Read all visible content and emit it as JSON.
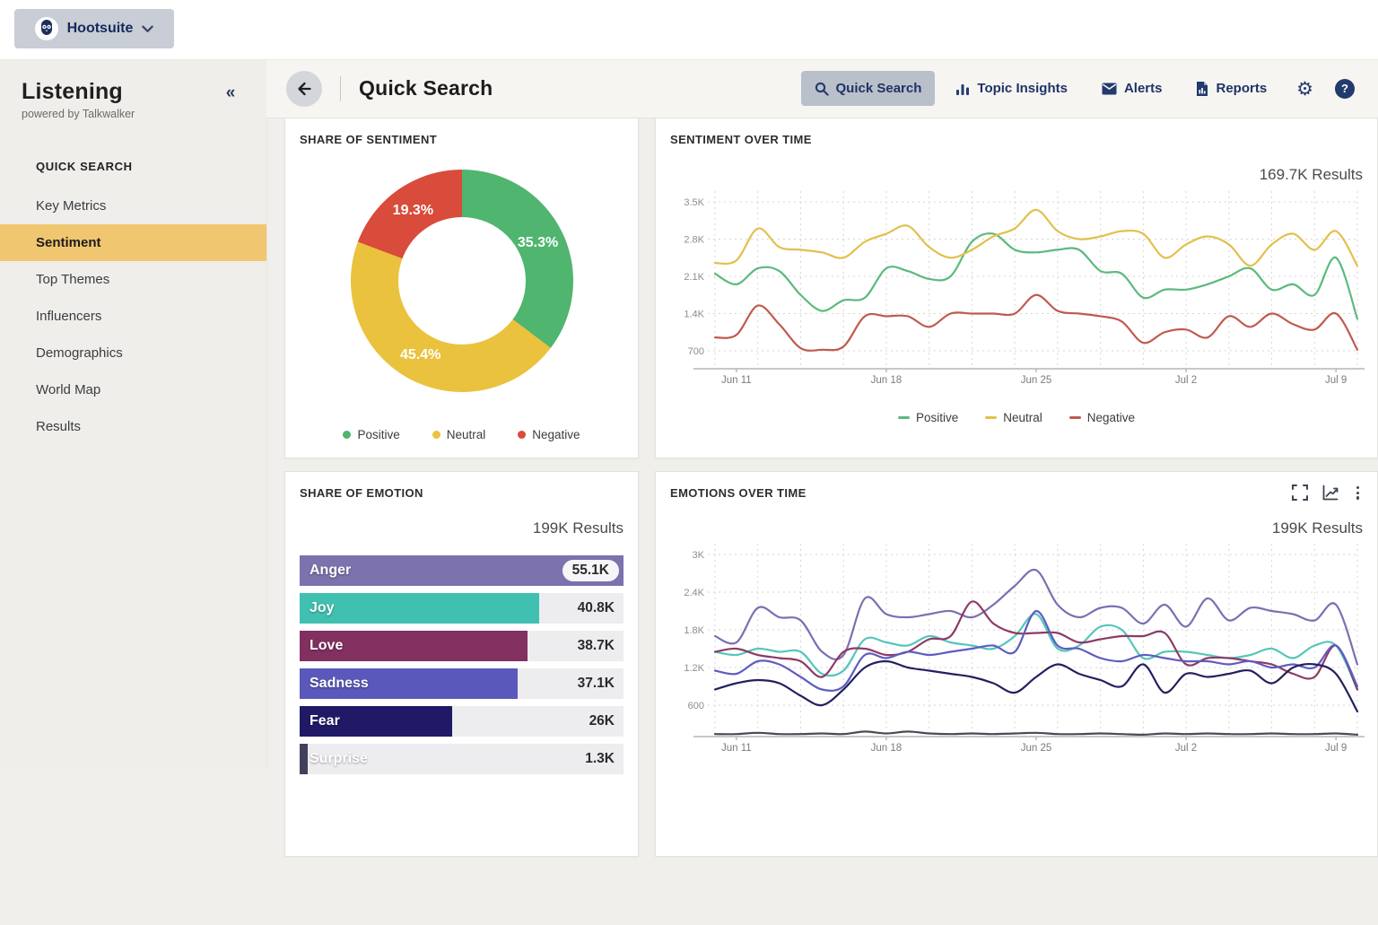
{
  "app": {
    "brand": "Hootsuite",
    "product_title": "Listening",
    "product_subtitle": "powered by Talkwalker",
    "collapse_glyph": "«"
  },
  "sidebar": {
    "section_label": "QUICK SEARCH",
    "active_color": "#f0c770",
    "items": [
      {
        "label": "Key Metrics",
        "active": false
      },
      {
        "label": "Sentiment",
        "active": true
      },
      {
        "label": "Top Themes",
        "active": false
      },
      {
        "label": "Influencers",
        "active": false
      },
      {
        "label": "Demographics",
        "active": false
      },
      {
        "label": "World Map",
        "active": false
      },
      {
        "label": "Results",
        "active": false
      }
    ]
  },
  "header": {
    "title": "Quick Search",
    "help_glyph": "?",
    "nav": [
      {
        "label": "Quick Search",
        "icon": "search-icon",
        "active": true
      },
      {
        "label": "Topic Insights",
        "icon": "bar-chart-icon",
        "active": false
      },
      {
        "label": "Alerts",
        "icon": "envelope-icon",
        "active": false
      },
      {
        "label": "Reports",
        "icon": "report-icon",
        "active": false
      }
    ]
  },
  "chart_data": [
    {
      "type": "pie",
      "title": "SHARE OF SENTIMENT",
      "donut": true,
      "labels": [
        "Positive",
        "Neutral",
        "Negative"
      ],
      "values": [
        35.3,
        45.4,
        19.3
      ],
      "value_labels": [
        "35.3%",
        "45.4%",
        "19.3%"
      ],
      "colors": [
        "#50b56f",
        "#eac23e",
        "#d94b3a"
      ],
      "legend_position": "bottom"
    },
    {
      "type": "line",
      "title": "SENTIMENT OVER TIME",
      "results": "169.7K Results",
      "grid": "dashed",
      "legend_position": "bottom",
      "x_ticks": [
        "Jun 11",
        "Jun 18",
        "Jun 25",
        "Jul 2",
        "Jul 9"
      ],
      "y_ticks": [
        "3.5K",
        "2.8K",
        "2.1K",
        "1.4K",
        "700"
      ],
      "y_tick_values": [
        3500,
        2800,
        2100,
        1400,
        700
      ],
      "series": [
        {
          "name": "Positive",
          "color": "#5cb97e",
          "values": [
            2150,
            1950,
            2250,
            2200,
            1750,
            1450,
            1650,
            1700,
            2250,
            2200,
            2050,
            2100,
            2750,
            2900,
            2600,
            2550,
            2600,
            2600,
            2200,
            2150,
            1700,
            1850,
            1850,
            1950,
            2100,
            2250,
            1850,
            1950,
            1750,
            2450,
            1300
          ]
        },
        {
          "name": "Neutral",
          "color": "#e2c04c",
          "values": [
            2350,
            2400,
            3000,
            2650,
            2600,
            2550,
            2450,
            2750,
            2900,
            3050,
            2650,
            2450,
            2600,
            2850,
            3000,
            3350,
            2950,
            2800,
            2850,
            2950,
            2900,
            2450,
            2700,
            2850,
            2700,
            2300,
            2700,
            2900,
            2600,
            2950,
            2300
          ]
        },
        {
          "name": "Negative",
          "color": "#c05a4e",
          "values": [
            950,
            1000,
            1550,
            1200,
            750,
            720,
            780,
            1350,
            1350,
            1350,
            1150,
            1400,
            1400,
            1400,
            1400,
            1750,
            1450,
            1400,
            1350,
            1250,
            850,
            1050,
            1100,
            950,
            1350,
            1150,
            1400,
            1200,
            1100,
            1400,
            720
          ]
        }
      ]
    },
    {
      "type": "bar",
      "title": "SHARE OF EMOTION",
      "results": "199K Results",
      "orientation": "horizontal",
      "categories": [
        "Anger",
        "Joy",
        "Love",
        "Sadness",
        "Fear",
        "Surprise"
      ],
      "values": [
        55100,
        40800,
        38700,
        37100,
        26000,
        1300
      ],
      "value_labels": [
        "55.1K",
        "40.8K",
        "38.7K",
        "37.1K",
        "26K",
        "1.3K"
      ],
      "colors": [
        "#7b72ae",
        "#40c0b1",
        "#81305f",
        "#5b58bb",
        "#201a66",
        "#41415c"
      ]
    },
    {
      "type": "line",
      "title": "EMOTIONS OVER TIME",
      "results": "199K Results",
      "grid": "dashed",
      "actions": [
        "fullscreen-icon",
        "line-chart-icon",
        "more-options-icon"
      ],
      "x_ticks": [
        "Jun 11",
        "Jun 18",
        "Jun 25",
        "Jul 2",
        "Jul 9"
      ],
      "y_ticks": [
        "3K",
        "2.4K",
        "1.8K",
        "1.2K",
        "600"
      ],
      "y_tick_values": [
        3000,
        2400,
        1800,
        1200,
        600
      ],
      "series": [
        {
          "name": "Anger",
          "color": "#7a70b1",
          "values": [
            1700,
            1600,
            2150,
            2000,
            1950,
            1450,
            1400,
            2300,
            2050,
            2000,
            2050,
            2100,
            2000,
            2200,
            2500,
            2750,
            2200,
            2000,
            2150,
            2150,
            1900,
            2200,
            1850,
            2300,
            1950,
            2150,
            2100,
            2050,
            1950,
            2200,
            1250
          ]
        },
        {
          "name": "Joy",
          "color": "#55c6ba",
          "values": [
            1450,
            1400,
            1500,
            1450,
            1450,
            1100,
            1150,
            1650,
            1600,
            1550,
            1700,
            1600,
            1550,
            1500,
            1700,
            2050,
            1500,
            1550,
            1850,
            1800,
            1350,
            1450,
            1450,
            1400,
            1350,
            1400,
            1500,
            1350,
            1550,
            1550,
            850
          ]
        },
        {
          "name": "Love",
          "color": "#8d3a66",
          "values": [
            1450,
            1500,
            1400,
            1350,
            1300,
            1050,
            1450,
            1500,
            1400,
            1450,
            1650,
            1700,
            2250,
            1900,
            1750,
            1750,
            1750,
            1600,
            1650,
            1700,
            1700,
            1750,
            1250,
            1350,
            1350,
            1300,
            1250,
            1100,
            1050,
            1550,
            850
          ]
        },
        {
          "name": "Sadness",
          "color": "#5f5cc0",
          "values": [
            1150,
            1100,
            1300,
            1250,
            1050,
            850,
            900,
            1400,
            1350,
            1450,
            1400,
            1450,
            1500,
            1550,
            1450,
            2100,
            1550,
            1500,
            1350,
            1300,
            1400,
            1350,
            1300,
            1300,
            1250,
            1300,
            1200,
            1250,
            1200,
            1550,
            900
          ]
        },
        {
          "name": "Fear",
          "color": "#23205f",
          "values": [
            850,
            950,
            1000,
            950,
            750,
            600,
            850,
            1200,
            1300,
            1200,
            1150,
            1100,
            1050,
            950,
            800,
            1050,
            1250,
            1100,
            1000,
            900,
            1250,
            800,
            1100,
            1050,
            1100,
            1150,
            950,
            1200,
            1250,
            1100,
            500
          ]
        },
        {
          "name": "Surprise",
          "color": "#4a4a55",
          "values": [
            140,
            140,
            160,
            140,
            140,
            150,
            140,
            180,
            150,
            180,
            150,
            140,
            150,
            140,
            150,
            160,
            140,
            140,
            150,
            140,
            130,
            150,
            140,
            150,
            140,
            140,
            150,
            140,
            140,
            150,
            130
          ]
        }
      ]
    }
  ]
}
